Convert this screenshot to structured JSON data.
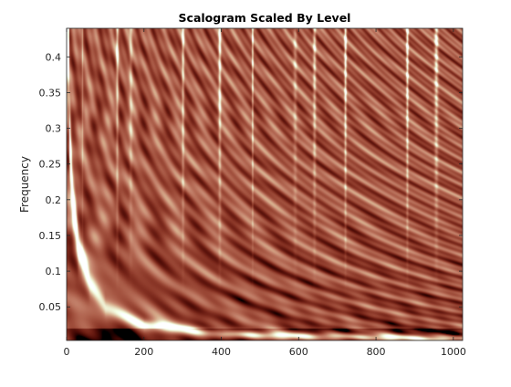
{
  "chart_data": {
    "type": "heatmap",
    "title": "Scalogram Scaled By Level",
    "xlabel": "",
    "ylabel": "Frequency",
    "xlim": [
      0,
      1024
    ],
    "ylim": [
      0.003,
      0.44
    ],
    "x_ticks": [
      0,
      200,
      400,
      600,
      800,
      1000
    ],
    "x_tick_labels": [
      "0",
      "200",
      "400",
      "600",
      "800",
      "1000"
    ],
    "y_ticks": [
      0.05,
      0.1,
      0.15,
      0.2,
      0.25,
      0.3,
      0.35,
      0.4
    ],
    "y_tick_labels": [
      "0.05",
      "0.1",
      "0.15",
      "0.2",
      "0.25",
      "0.3",
      "0.35",
      "0.4"
    ],
    "colormap": "pink",
    "colors": {
      "low": "#1e0c0c",
      "mid": "#b37e7b",
      "high": "#fffbe8"
    },
    "features": {
      "cone_of_influence_left": [
        {
          "x": 5,
          "y": 0.3
        },
        {
          "x": 15,
          "y": 0.2
        },
        {
          "x": 30,
          "y": 0.13
        },
        {
          "x": 60,
          "y": 0.08
        },
        {
          "x": 100,
          "y": 0.05
        },
        {
          "x": 200,
          "y": 0.025
        },
        {
          "x": 400,
          "y": 0.012
        },
        {
          "x": 1024,
          "y": 0.006
        }
      ],
      "bright_ridges_x": [
        40,
        130,
        165,
        300,
        395,
        480,
        590,
        640,
        720,
        880,
        955
      ],
      "grid": false,
      "box": true
    }
  }
}
